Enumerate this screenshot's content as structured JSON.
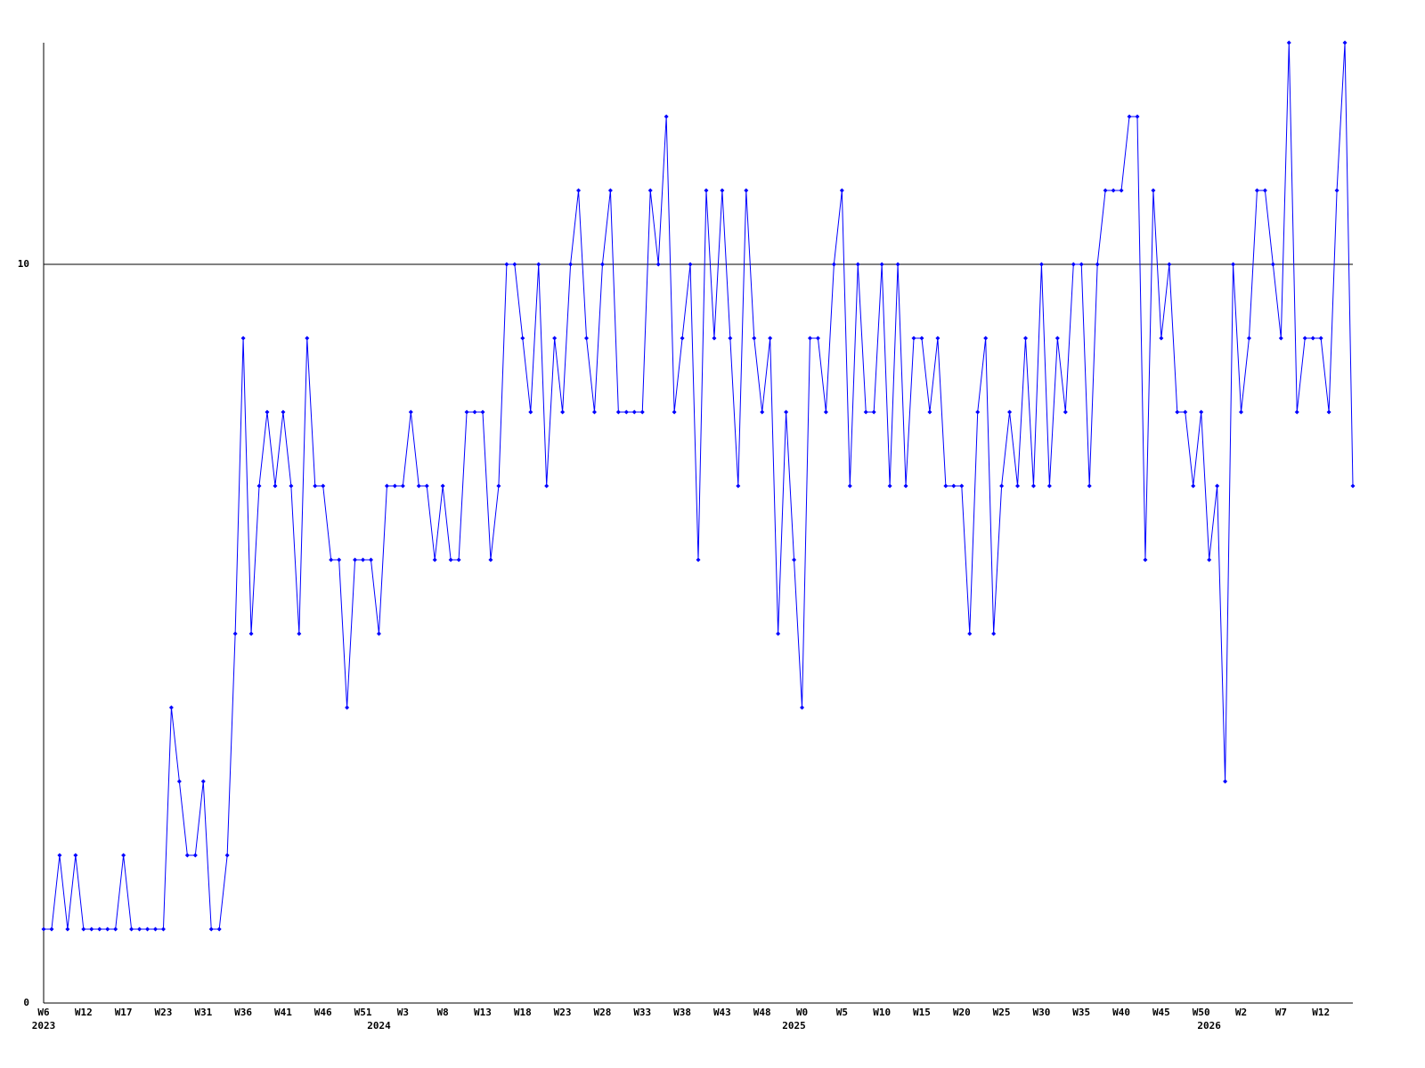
{
  "chart_data": {
    "type": "line",
    "categories": [
      "W6",
      null,
      null,
      null,
      null,
      "W12",
      null,
      null,
      null,
      null,
      "W17",
      null,
      null,
      null,
      null,
      "W23",
      null,
      null,
      null,
      null,
      "W31",
      null,
      null,
      null,
      null,
      "W36",
      null,
      null,
      null,
      null,
      "W41",
      null,
      null,
      null,
      null,
      "W46",
      null,
      null,
      null,
      null,
      "W51",
      null,
      null,
      null,
      null,
      "W3",
      null,
      null,
      null,
      null,
      "W8",
      null,
      null,
      null,
      null,
      "W13",
      null,
      null,
      null,
      null,
      "W18",
      null,
      null,
      null,
      null,
      "W23",
      null,
      null,
      null,
      null,
      "W28",
      null,
      null,
      null,
      null,
      "W33",
      null,
      null,
      null,
      null,
      "W38",
      null,
      null,
      null,
      null,
      "W43",
      null,
      null,
      null,
      null,
      "W48",
      null,
      null,
      null,
      null,
      "W0",
      null,
      null,
      null,
      null,
      "W5",
      null,
      null,
      null,
      null,
      "W10",
      null,
      null,
      null,
      null,
      "W15",
      null,
      null,
      null,
      null,
      "W20",
      null,
      null,
      null,
      null,
      "W25",
      null,
      null,
      null,
      null,
      "W30",
      null,
      null,
      null,
      null,
      "W35",
      null,
      null,
      null,
      null,
      "W40",
      null,
      null,
      null,
      null,
      "W45",
      null,
      null,
      null,
      null,
      "W50",
      null,
      null,
      null,
      null,
      "W2",
      null,
      null,
      null,
      null,
      "W7",
      null,
      null,
      null,
      null,
      "W12",
      null,
      null,
      null,
      null
    ],
    "year_labels": [
      "2023",
      null,
      null,
      null,
      null,
      null,
      null,
      null,
      null,
      null,
      null,
      null,
      null,
      null,
      null,
      null,
      null,
      null,
      null,
      null,
      null,
      null,
      null,
      null,
      null,
      null,
      null,
      null,
      null,
      null,
      null,
      null,
      null,
      null,
      null,
      null,
      null,
      null,
      null,
      null,
      null,
      null,
      "2024",
      null,
      null,
      null,
      null,
      null,
      null,
      null,
      null,
      null,
      null,
      null,
      null,
      null,
      null,
      null,
      null,
      null,
      null,
      null,
      null,
      null,
      null,
      null,
      null,
      null,
      null,
      null,
      null,
      null,
      null,
      null,
      null,
      null,
      null,
      null,
      null,
      null,
      null,
      null,
      null,
      null,
      null,
      null,
      null,
      null,
      null,
      null,
      null,
      null,
      null,
      null,
      "2025",
      null,
      null,
      null,
      null,
      null,
      null,
      null,
      null,
      null,
      null,
      null,
      null,
      null,
      null,
      null,
      null,
      null,
      null,
      null,
      null,
      null,
      null,
      null,
      null,
      null,
      null,
      null,
      null,
      null,
      null,
      null,
      null,
      null,
      null,
      null,
      null,
      null,
      null,
      null,
      null,
      null,
      null,
      null,
      null,
      null,
      null,
      null,
      null,
      null,
      null,
      null,
      "2026",
      null,
      null,
      null,
      null,
      null,
      null,
      null,
      null,
      null,
      null,
      null,
      null,
      null,
      null,
      null,
      null
    ],
    "values": [
      1,
      1,
      2,
      1,
      2,
      1,
      1,
      1,
      1,
      1,
      2,
      1,
      1,
      1,
      1,
      1,
      4,
      3,
      2,
      2,
      3,
      1,
      1,
      2,
      5,
      9,
      5,
      7,
      8,
      7,
      8,
      7,
      5,
      9,
      7,
      7,
      6,
      6,
      4,
      6,
      6,
      6,
      5,
      7,
      7,
      7,
      8,
      7,
      7,
      6,
      7,
      6,
      6,
      8,
      8,
      8,
      6,
      7,
      10,
      10,
      9,
      8,
      10,
      7,
      9,
      8,
      10,
      11,
      9,
      8,
      10,
      11,
      8,
      8,
      8,
      8,
      11,
      10,
      12,
      8,
      9,
      10,
      6,
      11,
      9,
      11,
      9,
      7,
      11,
      9,
      8,
      9,
      5,
      8,
      6,
      4,
      9,
      9,
      8,
      10,
      11,
      7,
      10,
      8,
      8,
      10,
      7,
      10,
      7,
      9,
      9,
      8,
      9,
      7,
      7,
      7,
      5,
      8,
      9,
      5,
      7,
      8,
      7,
      9,
      7,
      10,
      7,
      9,
      8,
      10,
      10,
      7,
      10,
      11,
      11,
      11,
      12,
      12,
      6,
      11,
      9,
      10,
      8,
      8,
      7,
      8,
      6,
      7,
      3,
      10,
      8,
      9,
      11,
      11,
      10,
      9,
      13,
      8,
      9,
      9,
      9,
      8,
      11,
      13,
      7
    ],
    "color": "#0000ff",
    "ylim": [
      0,
      13
    ],
    "yticks": [
      0,
      10
    ],
    "grid": true
  }
}
